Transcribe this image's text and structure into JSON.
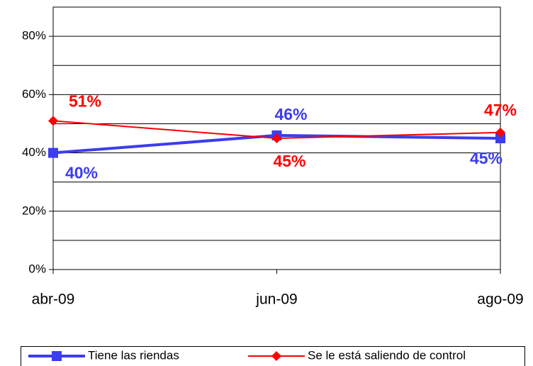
{
  "chart_data": {
    "type": "line",
    "categories": [
      "abr-09",
      "jun-09",
      "ago-09"
    ],
    "series": [
      {
        "name": "Tiene las riendas",
        "color": "#3c3cf0",
        "marker": "square",
        "values": [
          40,
          46,
          45
        ],
        "value_labels": [
          "40%",
          "46%",
          "45%"
        ]
      },
      {
        "name": "Se le está saliendo de control",
        "color": "#ff0000",
        "marker": "diamond",
        "values": [
          51,
          45,
          47
        ],
        "value_labels": [
          "51%",
          "45%",
          "47%"
        ]
      }
    ],
    "ylim": [
      0,
      90
    ],
    "yticks": [
      {
        "value": 0,
        "label": "0%"
      },
      {
        "value": 20,
        "label": "20%"
      },
      {
        "value": 40,
        "label": "40%"
      },
      {
        "value": 60,
        "label": "60%"
      },
      {
        "value": 80,
        "label": "80%"
      }
    ],
    "minor_yticks": [
      10,
      30,
      50,
      70,
      90
    ],
    "grid": true,
    "legend": "bottom"
  }
}
